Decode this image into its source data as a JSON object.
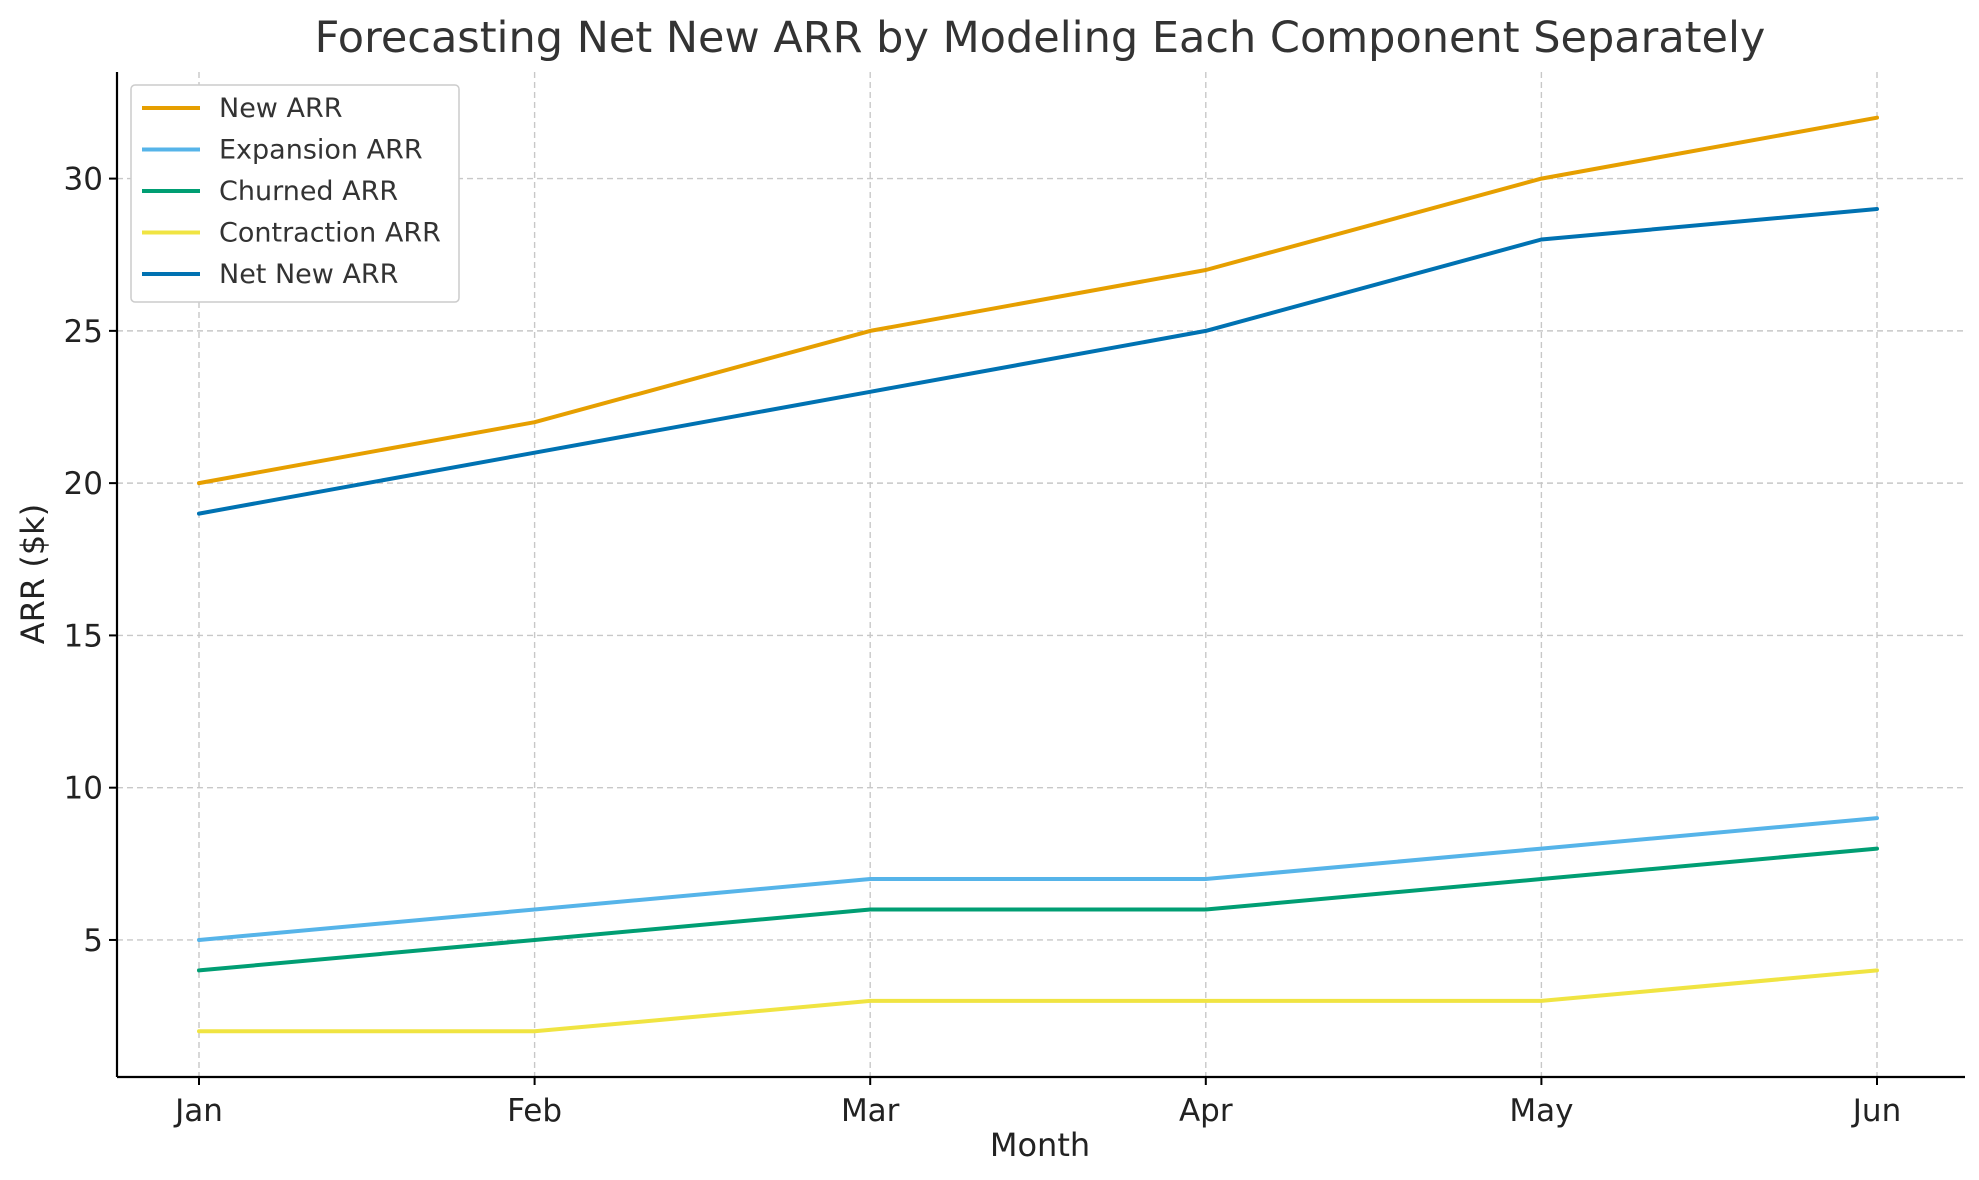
{
  "chart_data": {
    "type": "line",
    "title": "Forecasting Net New ARR by Modeling Each Component Separately",
    "xlabel": "Month",
    "ylabel": "ARR ($k)",
    "categories": [
      "Jan",
      "Feb",
      "Mar",
      "Apr",
      "May",
      "Jun"
    ],
    "ylim": [
      0.5,
      33.5
    ],
    "yticks": [
      5,
      10,
      15,
      20,
      25,
      30
    ],
    "grid": true,
    "legend_position": "upper-left",
    "series": [
      {
        "name": "New ARR",
        "color": "#E69F00",
        "values": [
          20,
          22,
          25,
          27,
          30,
          32
        ]
      },
      {
        "name": "Expansion ARR",
        "color": "#56B4E9",
        "values": [
          5,
          6,
          7,
          7,
          8,
          9
        ]
      },
      {
        "name": "Churned ARR",
        "color": "#009E73",
        "values": [
          4,
          5,
          6,
          6,
          7,
          8
        ]
      },
      {
        "name": "Contraction ARR",
        "color": "#F0E442",
        "values": [
          2,
          2,
          3,
          3,
          3,
          4
        ]
      },
      {
        "name": "Net New ARR",
        "color": "#0072B2",
        "values": [
          19,
          21,
          23,
          25,
          28,
          29
        ]
      }
    ]
  }
}
